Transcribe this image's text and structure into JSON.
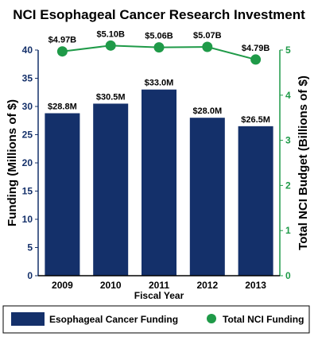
{
  "chart_data": {
    "type": "bar",
    "title": "NCI Esophageal Cancer Research Investment",
    "xlabel": "Fiscal Year",
    "ylabel": "Funding (Millions of $)",
    "y2label": "Total NCI Budget (Billions of $)",
    "categories": [
      "2009",
      "2010",
      "2011",
      "2012",
      "2013"
    ],
    "ylim": [
      0,
      40
    ],
    "y_ticks": [
      0,
      5,
      10,
      15,
      20,
      25,
      30,
      35,
      40
    ],
    "y2lim": [
      0,
      5
    ],
    "y2_ticks": [
      0,
      1,
      2,
      3,
      4,
      5
    ],
    "grid": false,
    "legend_position": "bottom",
    "series": [
      {
        "name": "Esophageal Cancer Funding",
        "type": "bar",
        "axis": "left",
        "color": "#14306a",
        "values": [
          28.8,
          30.5,
          33.0,
          28.0,
          26.5
        ],
        "labels": [
          "$28.8M",
          "$30.5M",
          "$33.0M",
          "$28.0M",
          "$26.5M"
        ]
      },
      {
        "name": "Total NCI Funding",
        "type": "line",
        "axis": "right",
        "color": "#1f9a48",
        "values": [
          4.97,
          5.1,
          5.06,
          5.07,
          4.79
        ],
        "labels": [
          "$4.97B",
          "$5.10B",
          "$5.06B",
          "$5.07B",
          "$4.79B"
        ]
      }
    ],
    "colors": {
      "left_axis": "#14306a",
      "right_axis": "#1f9a48",
      "text": "#000000"
    }
  }
}
